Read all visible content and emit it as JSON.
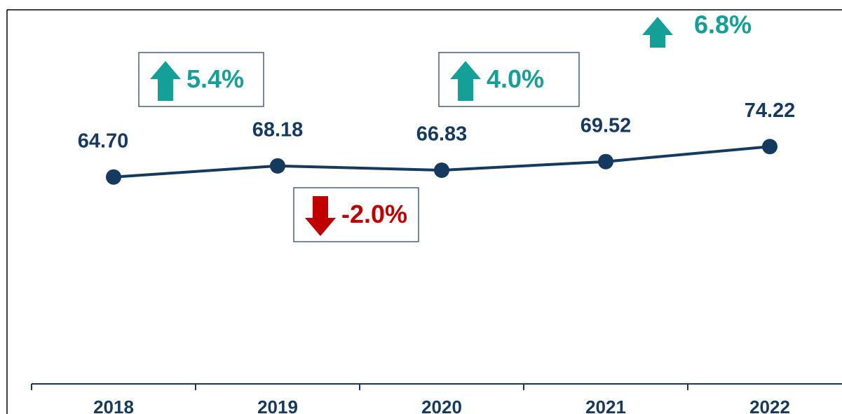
{
  "chart_data": {
    "type": "line",
    "categories": [
      "2018",
      "2019",
      "2020",
      "2021",
      "2022"
    ],
    "values": [
      64.7,
      68.18,
      66.83,
      69.52,
      74.22
    ],
    "value_labels": [
      "64.70",
      "68.18",
      "66.83",
      "69.52",
      "74.22"
    ],
    "color": "#163a5f",
    "ylim": [
      0,
      117
    ],
    "annotations": [
      {
        "text": "5.4%",
        "direction": "up",
        "color": "#14a098"
      },
      {
        "text": "-2.0%",
        "direction": "down",
        "color": "#c00000"
      },
      {
        "text": "4.0%",
        "direction": "up",
        "color": "#14a098"
      },
      {
        "text": "6.8%",
        "direction": "up",
        "color": "#14a098"
      }
    ]
  }
}
